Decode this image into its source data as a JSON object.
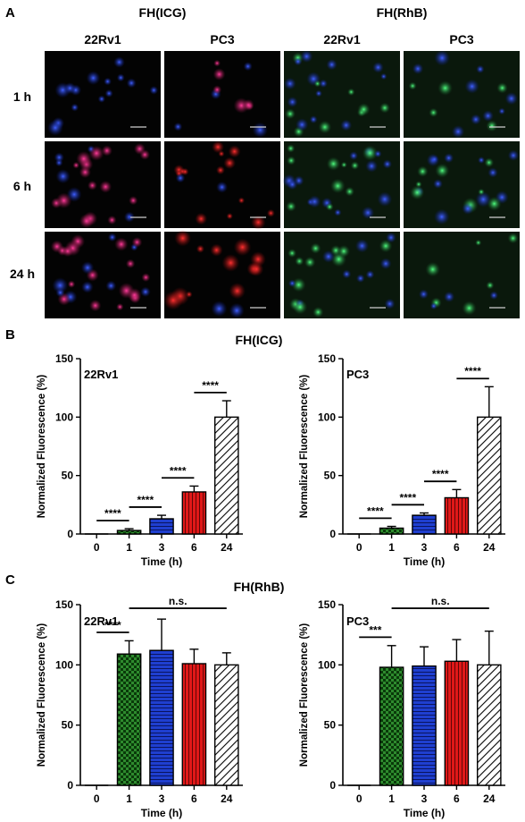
{
  "panels": {
    "a": "A",
    "b": "B",
    "c": "C"
  },
  "panel_a": {
    "groups": [
      "FH(ICG)",
      "FH(RhB)"
    ],
    "columns": [
      "22Rv1",
      "PC3",
      "22Rv1",
      "PC3"
    ],
    "rows": [
      "1 h",
      "6 h",
      "24 h"
    ]
  },
  "panel_b_title": "FH(ICG)",
  "panel_c_title": "FH(RhB)",
  "colors": {
    "green": "#2e8b2e",
    "blue": "#1f3fd0",
    "red": "#e01818",
    "hatch": "#ffffff"
  },
  "chart_data": [
    {
      "type": "bar",
      "label": "22Rv1",
      "categories": [
        "0",
        "1",
        "3",
        "6",
        "24"
      ],
      "values": [
        0,
        3,
        13,
        36,
        100
      ],
      "errors": [
        0,
        1.5,
        3,
        5,
        14
      ],
      "fills": [
        "none",
        "checker",
        "hlines",
        "vlines",
        "diag"
      ],
      "ylim": [
        0,
        150
      ],
      "yticks": [
        "0",
        "50",
        "100",
        "150"
      ],
      "xlabel": "Time (h)",
      "ylabel": "Normalized Fluorescence (%)",
      "annotations": [
        {
          "text": "****",
          "from": 0,
          "to": 1
        },
        {
          "text": "****",
          "from": 1,
          "to": 2
        },
        {
          "text": "****",
          "from": 2,
          "to": 3
        },
        {
          "text": "****",
          "from": 3,
          "to": 4
        }
      ]
    },
    {
      "type": "bar",
      "label": "PC3",
      "categories": [
        "0",
        "1",
        "3",
        "6",
        "24"
      ],
      "values": [
        0,
        5,
        16,
        31,
        100
      ],
      "errors": [
        0,
        1.5,
        2,
        7,
        26
      ],
      "fills": [
        "none",
        "checker",
        "hlines",
        "vlines",
        "diag"
      ],
      "ylim": [
        0,
        150
      ],
      "yticks": [
        "0",
        "50",
        "100",
        "150"
      ],
      "xlabel": "Time (h)",
      "ylabel": "Normalized Fluorescence (%)",
      "annotations": [
        {
          "text": "****",
          "from": 0,
          "to": 1
        },
        {
          "text": "****",
          "from": 1,
          "to": 2
        },
        {
          "text": "****",
          "from": 2,
          "to": 3
        },
        {
          "text": "****",
          "from": 3,
          "to": 4
        }
      ]
    },
    {
      "type": "bar",
      "label": "22Rv1",
      "categories": [
        "0",
        "1",
        "3",
        "6",
        "24"
      ],
      "values": [
        0,
        109,
        112,
        101,
        100
      ],
      "errors": [
        0,
        11,
        26,
        12,
        10
      ],
      "fills": [
        "none",
        "checker",
        "hlines",
        "vlines",
        "diag"
      ],
      "ylim": [
        0,
        150
      ],
      "yticks": [
        "0",
        "50",
        "100",
        "150"
      ],
      "xlabel": "Time (h)",
      "ylabel": "Normalized Fluorescence (%)",
      "annotations": [
        {
          "text": "****",
          "from": 0,
          "to": 1
        },
        {
          "text": "n.s.",
          "from": 1,
          "to": 4
        }
      ]
    },
    {
      "type": "bar",
      "label": "PC3",
      "categories": [
        "0",
        "1",
        "3",
        "6",
        "24"
      ],
      "values": [
        0,
        98,
        99,
        103,
        100
      ],
      "errors": [
        0,
        18,
        16,
        18,
        28
      ],
      "fills": [
        "none",
        "checker",
        "hlines",
        "vlines",
        "diag"
      ],
      "ylim": [
        0,
        150
      ],
      "yticks": [
        "0",
        "50",
        "100",
        "150"
      ],
      "xlabel": "Time (h)",
      "ylabel": "Normalized Fluorescence (%)",
      "annotations": [
        {
          "text": "***",
          "from": 0,
          "to": 1
        },
        {
          "text": "n.s.",
          "from": 1,
          "to": 4
        }
      ]
    }
  ]
}
